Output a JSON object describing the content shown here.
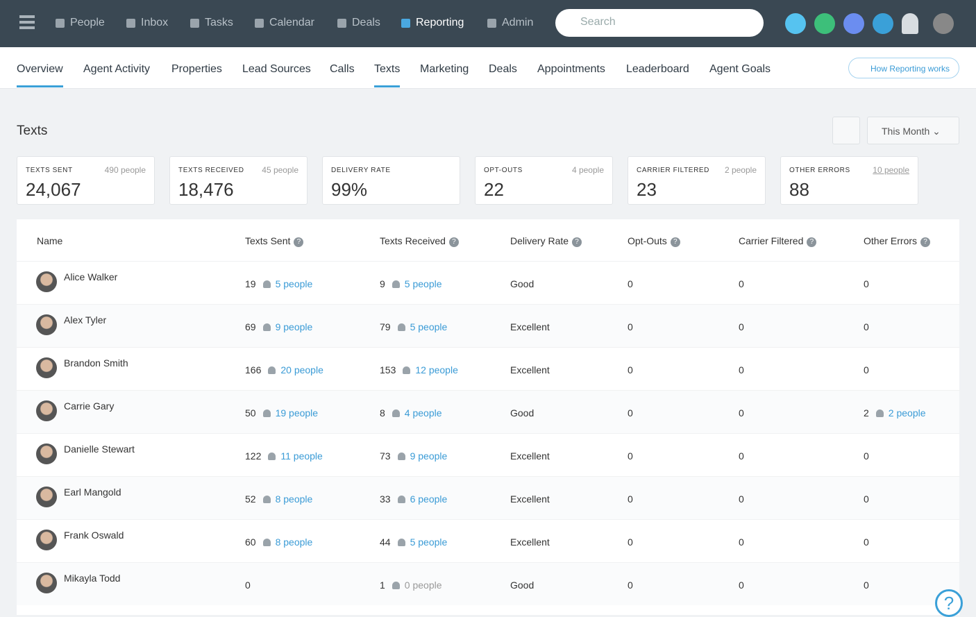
{
  "nav": {
    "items": [
      "People",
      "Inbox",
      "Tasks",
      "Calendar",
      "Deals",
      "Reporting",
      "Admin"
    ],
    "active": 5,
    "search_placeholder": "Search"
  },
  "tabs": {
    "items": [
      "Overview",
      "Agent Activity",
      "Properties",
      "Lead Sources",
      "Calls",
      "Texts",
      "Marketing",
      "Deals",
      "Appointments",
      "Leaderboard",
      "Agent Goals"
    ],
    "active": [
      0,
      5
    ],
    "help": "How Reporting works"
  },
  "page": {
    "title": "Texts",
    "range": "This Month"
  },
  "stats": [
    {
      "label": "TEXTS SENT",
      "people": "490 people",
      "value": "24,067"
    },
    {
      "label": "TEXTS RECEIVED",
      "people": "45 people",
      "value": "18,476"
    },
    {
      "label": "DELIVERY RATE",
      "value": "99%"
    },
    {
      "label": "OPT-OUTS",
      "people": "4 people",
      "value": "22"
    },
    {
      "label": "CARRIER FILTERED",
      "people": "2 people",
      "value": "23"
    },
    {
      "label": "OTHER ERRORS",
      "people": "10 people",
      "value": "88"
    }
  ],
  "table": {
    "headers": [
      "Name",
      "Texts Sent",
      "Texts Received",
      "Delivery Rate",
      "Opt-Outs",
      "Carrier Filtered",
      "Other Errors"
    ],
    "rows": [
      {
        "name": "Alice Walker",
        "sent": 19,
        "sent_people": "5 people",
        "received": 9,
        "received_people": "5 people",
        "delivery": "Good",
        "opt_outs": 0,
        "carrier": 0,
        "errors": 0
      },
      {
        "name": "Alex Tyler",
        "sent": 69,
        "sent_people": "9 people",
        "received": 79,
        "received_people": "5 people",
        "delivery": "Excellent",
        "opt_outs": 0,
        "carrier": 0,
        "errors": 0
      },
      {
        "name": "Brandon Smith",
        "sent": 166,
        "sent_people": "20 people",
        "received": 153,
        "received_people": "12 people",
        "delivery": "Excellent",
        "opt_outs": 0,
        "carrier": 0,
        "errors": 0
      },
      {
        "name": "Carrie Gary",
        "sent": 50,
        "sent_people": "19 people",
        "received": 8,
        "received_people": "4 people",
        "delivery": "Good",
        "opt_outs": 0,
        "carrier": 0,
        "errors": 2,
        "errors_people": "2 people"
      },
      {
        "name": "Danielle Stewart",
        "sent": 122,
        "sent_people": "11 people",
        "received": 73,
        "received_people": "9 people",
        "delivery": "Excellent",
        "opt_outs": 0,
        "carrier": 0,
        "errors": 0
      },
      {
        "name": "Earl Mangold",
        "sent": 52,
        "sent_people": "8 people",
        "received": 33,
        "received_people": "6 people",
        "delivery": "Excellent",
        "opt_outs": 0,
        "carrier": 0,
        "errors": 0
      },
      {
        "name": "Frank Oswald",
        "sent": 60,
        "sent_people": "8 people",
        "received": 44,
        "received_people": "5 people",
        "delivery": "Excellent",
        "opt_outs": 0,
        "carrier": 0,
        "errors": 0
      },
      {
        "name": "Mikayla Todd",
        "sent": 0,
        "received": 1,
        "received_people": "0 people",
        "delivery": "Good",
        "opt_outs": 0,
        "carrier": 0,
        "errors": 0
      }
    ]
  }
}
